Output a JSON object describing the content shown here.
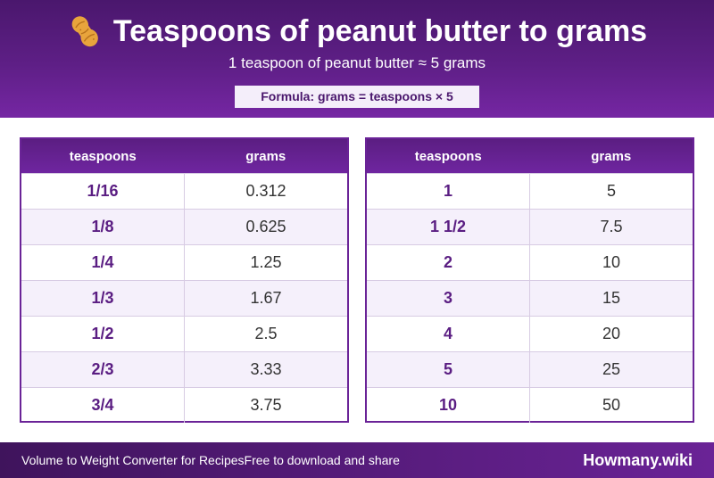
{
  "header": {
    "icon": "peanut-icon",
    "title": "Teaspoons of peanut butter to grams",
    "subtitle": "1 teaspoon of peanut butter ≈ 5 grams",
    "formula": "Formula: grams = teaspoons × 5"
  },
  "tables": [
    {
      "col_teaspoons": "teaspoons",
      "col_grams": "grams",
      "rows": [
        {
          "teaspoons": "1/16",
          "grams": "0.312"
        },
        {
          "teaspoons": "1/8",
          "grams": "0.625"
        },
        {
          "teaspoons": "1/4",
          "grams": "1.25"
        },
        {
          "teaspoons": "1/3",
          "grams": "1.67"
        },
        {
          "teaspoons": "1/2",
          "grams": "2.5"
        },
        {
          "teaspoons": "2/3",
          "grams": "3.33"
        },
        {
          "teaspoons": "3/4",
          "grams": "3.75"
        }
      ]
    },
    {
      "col_teaspoons": "teaspoons",
      "col_grams": "grams",
      "rows": [
        {
          "teaspoons": "1",
          "grams": "5"
        },
        {
          "teaspoons": "1 1/2",
          "grams": "7.5"
        },
        {
          "teaspoons": "2",
          "grams": "10"
        },
        {
          "teaspoons": "3",
          "grams": "15"
        },
        {
          "teaspoons": "4",
          "grams": "20"
        },
        {
          "teaspoons": "5",
          "grams": "25"
        },
        {
          "teaspoons": "10",
          "grams": "50"
        }
      ]
    }
  ],
  "footer": {
    "left_text": "Volume to Weight Converter for Recipes",
    "middle_text": "Free to download and share",
    "brand": "Howmany.wiki"
  },
  "colors": {
    "brand_purple": "#5e1f86",
    "row_alt": "#f5f0fb",
    "teaspoon_text": "#5a1d82"
  }
}
